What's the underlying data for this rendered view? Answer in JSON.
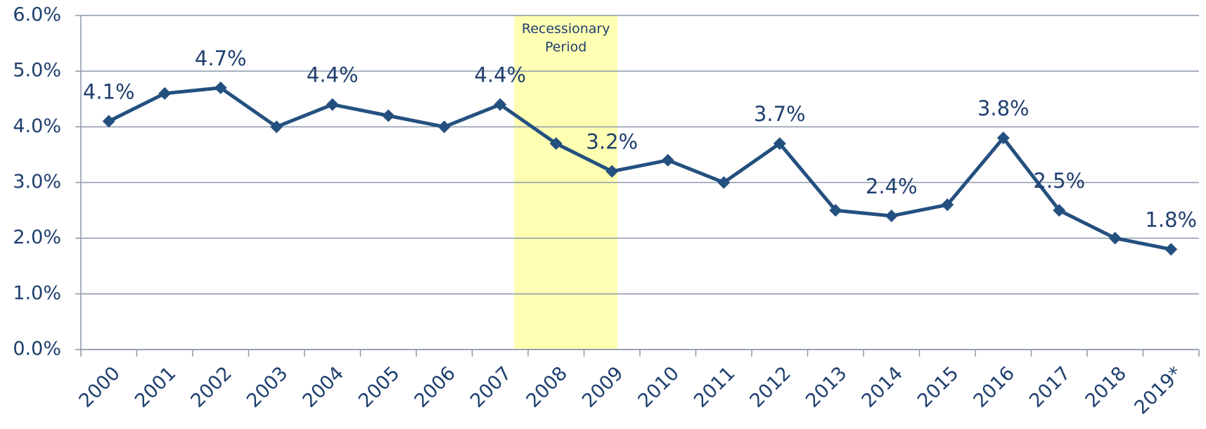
{
  "chart_data": {
    "type": "line",
    "categories": [
      "2000",
      "2001",
      "2002",
      "2003",
      "2004",
      "2005",
      "2006",
      "2007",
      "2008",
      "2009",
      "2010",
      "2011",
      "2012",
      "2013",
      "2014",
      "2015",
      "2016",
      "2017",
      "2018",
      "2019*"
    ],
    "series": [
      {
        "color": "#24507f",
        "values": [
          4.1,
          4.6,
          4.7,
          4.0,
          4.4,
          4.2,
          4.0,
          4.4,
          3.7,
          3.2,
          3.4,
          3.0,
          3.7,
          2.5,
          2.4,
          2.6,
          3.8,
          2.5,
          2.0,
          1.8
        ],
        "value_labels": [
          "4.1%",
          null,
          "4.7%",
          null,
          "4.4%",
          null,
          null,
          "4.4%",
          null,
          "3.2%",
          null,
          null,
          "3.7%",
          null,
          "2.4%",
          null,
          "3.8%",
          "2.5%",
          null,
          "1.8%"
        ]
      }
    ],
    "ylim": [
      0,
      6
    ],
    "yticks": [
      {
        "value": 0,
        "label": "0.0%"
      },
      {
        "value": 1,
        "label": "1.0%"
      },
      {
        "value": 2,
        "label": "2.0%"
      },
      {
        "value": 3,
        "label": "3.0%"
      },
      {
        "value": 4,
        "label": "4.0%"
      },
      {
        "value": 5,
        "label": "5.0%"
      },
      {
        "value": 6,
        "label": "6.0%"
      }
    ],
    "grid": true,
    "shaded_region": {
      "label": "Recessionary Period",
      "from": "2008",
      "to": "2009",
      "color": "#ffffb3"
    }
  }
}
